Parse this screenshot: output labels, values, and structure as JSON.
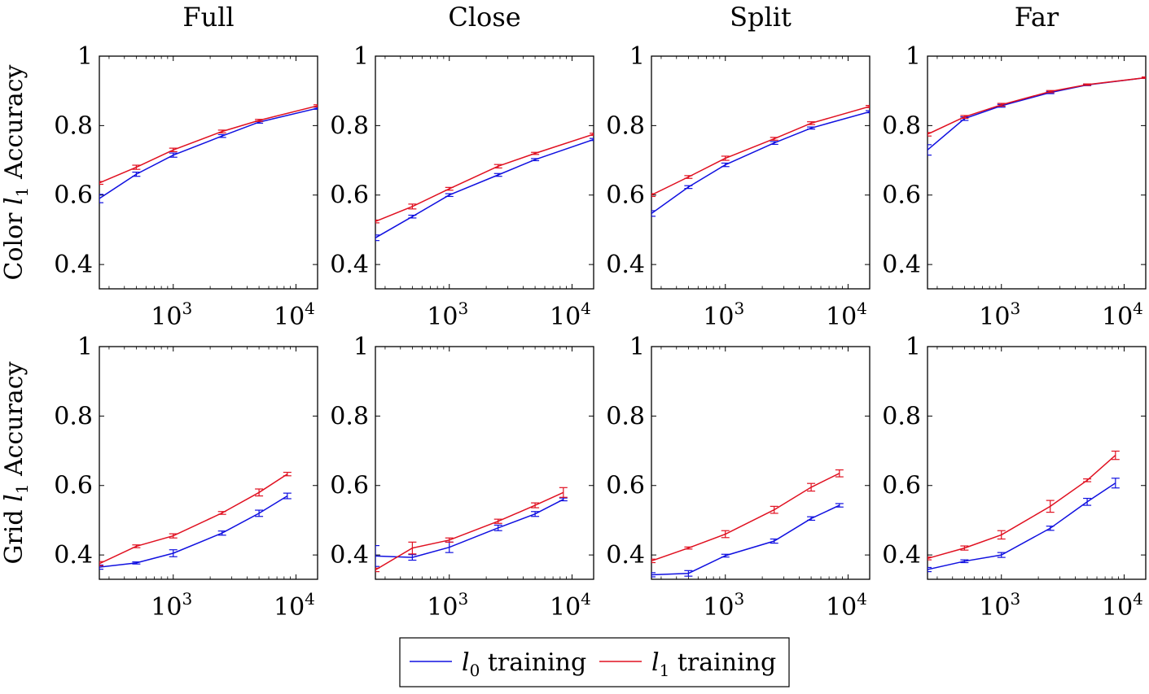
{
  "column_titles": [
    "Full",
    "Close",
    "Split",
    "Far"
  ],
  "row_labels": [
    {
      "prefix": "Color ",
      "var": "l",
      "sub": "1",
      "suffix": " Accuracy"
    },
    {
      "prefix": "Grid ",
      "var": "l",
      "sub": "1",
      "suffix": " Accuracy"
    }
  ],
  "legend": [
    {
      "var": "l",
      "sub": "0",
      "text": " training",
      "color": "#1010e0"
    },
    {
      "var": "l",
      "sub": "1",
      "text": " training",
      "color": "#e01020"
    }
  ],
  "colors": {
    "l0": "#1010e0",
    "l1": "#e01020"
  },
  "chart_data": [
    {
      "type": "line",
      "row": "Color",
      "title": "Full",
      "xscale": "log",
      "xlim": [
        250,
        15000
      ],
      "ylim": [
        0.33,
        1.0
      ],
      "yticks": [
        0.4,
        0.6,
        0.8,
        1
      ],
      "ytick_labels": [
        "0.4",
        "0.6",
        "0.8",
        "1"
      ],
      "xticks": [
        1000,
        10000
      ],
      "xtick_labels": [
        {
          "base": "10",
          "exp": "3"
        },
        {
          "base": "10",
          "exp": "4"
        }
      ],
      "series": [
        {
          "name": "l0 training",
          "x": [
            250,
            500,
            1000,
            2500,
            5000,
            15000
          ],
          "y": [
            0.59,
            0.66,
            0.715,
            0.77,
            0.81,
            0.85
          ],
          "err": [
            0.012,
            0.006,
            0.006,
            0.004,
            0.003,
            0.003
          ]
        },
        {
          "name": "l1 training",
          "x": [
            250,
            500,
            1000,
            2500,
            5000,
            15000
          ],
          "y": [
            0.635,
            0.68,
            0.73,
            0.783,
            0.815,
            0.857
          ],
          "err": [
            0.004,
            0.006,
            0.005,
            0.004,
            0.003,
            0.003
          ]
        }
      ]
    },
    {
      "type": "line",
      "row": "Color",
      "title": "Close",
      "xscale": "log",
      "xlim": [
        250,
        15000
      ],
      "ylim": [
        0.33,
        1.0
      ],
      "yticks": [
        0.4,
        0.6,
        0.8,
        1
      ],
      "ytick_labels": [
        "0.4",
        "0.6",
        "0.8",
        "1"
      ],
      "xticks": [
        1000,
        10000
      ],
      "xtick_labels": [
        {
          "base": "10",
          "exp": "3"
        },
        {
          "base": "10",
          "exp": "4"
        }
      ],
      "series": [
        {
          "name": "l0 training",
          "x": [
            250,
            500,
            1000,
            2500,
            5000,
            15000
          ],
          "y": [
            0.477,
            0.538,
            0.6,
            0.658,
            0.702,
            0.76
          ],
          "err": [
            0.008,
            0.004,
            0.004,
            0.004,
            0.003,
            0.003
          ]
        },
        {
          "name": "l1 training",
          "x": [
            250,
            500,
            1000,
            2500,
            5000,
            15000
          ],
          "y": [
            0.524,
            0.567,
            0.618,
            0.683,
            0.72,
            0.775
          ],
          "err": [
            0.004,
            0.007,
            0.004,
            0.005,
            0.003,
            0.003
          ]
        }
      ]
    },
    {
      "type": "line",
      "row": "Color",
      "title": "Split",
      "xscale": "log",
      "xlim": [
        250,
        15000
      ],
      "ylim": [
        0.33,
        1.0
      ],
      "yticks": [
        0.4,
        0.6,
        0.8,
        1
      ],
      "ytick_labels": [
        "0.4",
        "0.6",
        "0.8",
        "1"
      ],
      "xticks": [
        1000,
        10000
      ],
      "xtick_labels": [
        {
          "base": "10",
          "exp": "3"
        },
        {
          "base": "10",
          "exp": "4"
        }
      ],
      "series": [
        {
          "name": "l0 training",
          "x": [
            250,
            500,
            1000,
            2500,
            5000,
            15000
          ],
          "y": [
            0.547,
            0.623,
            0.687,
            0.75,
            0.793,
            0.84
          ],
          "err": [
            0.008,
            0.004,
            0.005,
            0.004,
            0.003,
            0.003
          ]
        },
        {
          "name": "l1 training",
          "x": [
            250,
            500,
            1000,
            2500,
            5000,
            15000
          ],
          "y": [
            0.6,
            0.652,
            0.706,
            0.762,
            0.807,
            0.855
          ],
          "err": [
            0.004,
            0.004,
            0.006,
            0.004,
            0.004,
            0.003
          ]
        }
      ]
    },
    {
      "type": "line",
      "row": "Color",
      "title": "Far",
      "xscale": "log",
      "xlim": [
        250,
        15000
      ],
      "ylim": [
        0.33,
        1.0
      ],
      "yticks": [
        0.4,
        0.6,
        0.8,
        1
      ],
      "ytick_labels": [
        "0.4",
        "0.6",
        "0.8",
        "1"
      ],
      "xticks": [
        1000,
        10000
      ],
      "xtick_labels": [
        {
          "base": "10",
          "exp": "3"
        },
        {
          "base": "10",
          "exp": "4"
        }
      ],
      "series": [
        {
          "name": "l0 training",
          "x": [
            250,
            500,
            1000,
            2500,
            5000,
            15000
          ],
          "y": [
            0.73,
            0.82,
            0.857,
            0.895,
            0.917,
            0.938
          ],
          "err": [
            0.015,
            0.005,
            0.004,
            0.003,
            0.002,
            0.002
          ]
        },
        {
          "name": "l1 training",
          "x": [
            250,
            500,
            1000,
            2500,
            5000,
            15000
          ],
          "y": [
            0.775,
            0.825,
            0.86,
            0.898,
            0.918,
            0.938
          ],
          "err": [
            0.005,
            0.004,
            0.004,
            0.003,
            0.002,
            0.002
          ]
        }
      ]
    },
    {
      "type": "line",
      "row": "Grid",
      "title": "Full",
      "xscale": "log",
      "xlim": [
        250,
        15000
      ],
      "ylim": [
        0.33,
        1.0
      ],
      "yticks": [
        0.4,
        0.6,
        0.8,
        1
      ],
      "ytick_labels": [
        "0.4",
        "0.6",
        "0.8",
        "1"
      ],
      "xticks": [
        1000,
        10000
      ],
      "xtick_labels": [
        {
          "base": "10",
          "exp": "3"
        },
        {
          "base": "10",
          "exp": "4"
        }
      ],
      "series": [
        {
          "name": "l0 training",
          "x": [
            250,
            500,
            1000,
            2500,
            5000,
            8500
          ],
          "y": [
            0.365,
            0.377,
            0.405,
            0.463,
            0.52,
            0.57
          ],
          "err": [
            0.006,
            0.003,
            0.01,
            0.006,
            0.009,
            0.008
          ]
        },
        {
          "name": "l1 training",
          "x": [
            250,
            500,
            1000,
            2500,
            5000,
            8500
          ],
          "y": [
            0.375,
            0.425,
            0.455,
            0.521,
            0.58,
            0.633
          ],
          "err": [
            0.006,
            0.004,
            0.006,
            0.004,
            0.01,
            0.005
          ]
        }
      ]
    },
    {
      "type": "line",
      "row": "Grid",
      "title": "Close",
      "xscale": "log",
      "xlim": [
        250,
        15000
      ],
      "ylim": [
        0.33,
        1.0
      ],
      "yticks": [
        0.4,
        0.6,
        0.8,
        1
      ],
      "ytick_labels": [
        "0.4",
        "0.6",
        "0.8",
        "1"
      ],
      "xticks": [
        1000,
        10000
      ],
      "xtick_labels": [
        {
          "base": "10",
          "exp": "3"
        },
        {
          "base": "10",
          "exp": "4"
        }
      ],
      "series": [
        {
          "name": "l0 training",
          "x": [
            250,
            500,
            1000,
            2500,
            5000,
            8500
          ],
          "y": [
            0.397,
            0.393,
            0.422,
            0.478,
            0.518,
            0.56
          ],
          "err": [
            0.03,
            0.008,
            0.015,
            0.008,
            0.007,
            0.004
          ]
        },
        {
          "name": "l1 training",
          "x": [
            250,
            500,
            1000,
            2500,
            5000,
            8500
          ],
          "y": [
            0.357,
            0.42,
            0.443,
            0.497,
            0.543,
            0.58
          ],
          "err": [
            0.005,
            0.017,
            0.006,
            0.006,
            0.007,
            0.014
          ]
        }
      ]
    },
    {
      "type": "line",
      "row": "Grid",
      "title": "Split",
      "xscale": "log",
      "xlim": [
        250,
        15000
      ],
      "ylim": [
        0.33,
        1.0
      ],
      "yticks": [
        0.4,
        0.6,
        0.8,
        1
      ],
      "ytick_labels": [
        "0.4",
        "0.6",
        "0.8",
        "1"
      ],
      "xticks": [
        1000,
        10000
      ],
      "xtick_labels": [
        {
          "base": "10",
          "exp": "3"
        },
        {
          "base": "10",
          "exp": "4"
        }
      ],
      "series": [
        {
          "name": "l0 training",
          "x": [
            250,
            500,
            1000,
            2500,
            5000,
            8500
          ],
          "y": [
            0.343,
            0.347,
            0.398,
            0.44,
            0.505,
            0.543
          ],
          "err": [
            0.006,
            0.008,
            0.004,
            0.006,
            0.005,
            0.005
          ]
        },
        {
          "name": "l1 training",
          "x": [
            250,
            500,
            1000,
            2500,
            5000,
            8500
          ],
          "y": [
            0.383,
            0.42,
            0.46,
            0.53,
            0.595,
            0.635
          ],
          "err": [
            0.005,
            0.003,
            0.01,
            0.01,
            0.011,
            0.01
          ]
        }
      ]
    },
    {
      "type": "line",
      "row": "Grid",
      "title": "Far",
      "xscale": "log",
      "xlim": [
        250,
        15000
      ],
      "ylim": [
        0.33,
        1.0
      ],
      "yticks": [
        0.4,
        0.6,
        0.8,
        1
      ],
      "ytick_labels": [
        "0.4",
        "0.6",
        "0.8",
        "1"
      ],
      "xticks": [
        1000,
        10000
      ],
      "xtick_labels": [
        {
          "base": "10",
          "exp": "3"
        },
        {
          "base": "10",
          "exp": "4"
        }
      ],
      "series": [
        {
          "name": "l0 training",
          "x": [
            250,
            500,
            1000,
            2500,
            5000,
            8500
          ],
          "y": [
            0.358,
            0.382,
            0.4,
            0.477,
            0.553,
            0.607
          ],
          "err": [
            0.006,
            0.004,
            0.007,
            0.006,
            0.01,
            0.014
          ]
        },
        {
          "name": "l1 training",
          "x": [
            250,
            500,
            1000,
            2500,
            5000,
            8500
          ],
          "y": [
            0.39,
            0.42,
            0.458,
            0.54,
            0.615,
            0.687
          ],
          "err": [
            0.004,
            0.006,
            0.012,
            0.017,
            0.004,
            0.012
          ]
        }
      ]
    }
  ]
}
